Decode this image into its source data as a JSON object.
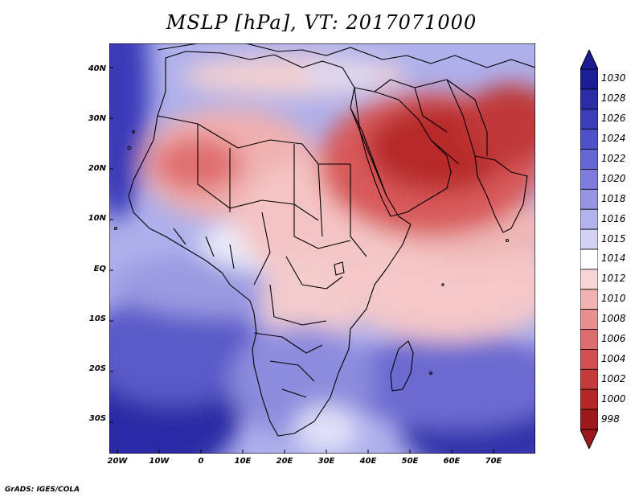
{
  "title": "MSLP [hPa], VT: 2017071000",
  "credit": "GrADS: IGES/COLA",
  "map": {
    "lat_labels": [
      "40N",
      "30N",
      "20N",
      "10N",
      "EQ",
      "10S",
      "20S",
      "30S"
    ],
    "lon_labels": [
      "20W",
      "10W",
      "0",
      "10E",
      "20E",
      "30E",
      "40E",
      "50E",
      "60E",
      "70E"
    ],
    "region": "Africa, Arabian Peninsula and Middle East"
  },
  "colorbar": {
    "levels": [
      "1030",
      "1028",
      "1026",
      "1024",
      "1022",
      "1020",
      "1018",
      "1016",
      "1015",
      "1014",
      "1012",
      "1010",
      "1008",
      "1006",
      "1004",
      "1002",
      "1000",
      "998"
    ],
    "colors": [
      "#1c1c94",
      "#2c2ca8",
      "#3d3dba",
      "#5050c8",
      "#6565d3",
      "#7c7cdc",
      "#9595e4",
      "#b2b2ec",
      "#d2d2f5",
      "#ffffff",
      "#f8d5d5",
      "#f0b2b2",
      "#e89090",
      "#dc6e6e",
      "#d25050",
      "#c53a3a",
      "#b52828",
      "#9e1a1a"
    ]
  }
}
